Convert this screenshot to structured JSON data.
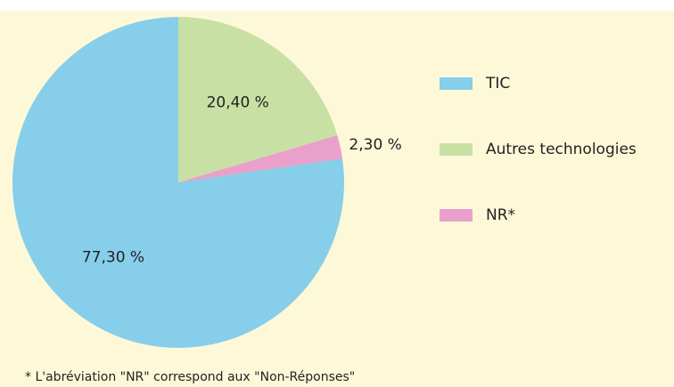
{
  "chart_data": {
    "type": "pie",
    "categories": [
      "TIC",
      "Autres technologies",
      "NR*"
    ],
    "values": [
      77.3,
      20.4,
      2.3
    ],
    "value_labels": [
      "77,30 %",
      "20,40 %",
      "2,30 %"
    ],
    "colors": [
      "#87ceea",
      "#c9e0a5",
      "#e9a0cb"
    ],
    "footnote": "* L'abréviation \"NR\" correspond aux \"Non-Réponses\""
  }
}
